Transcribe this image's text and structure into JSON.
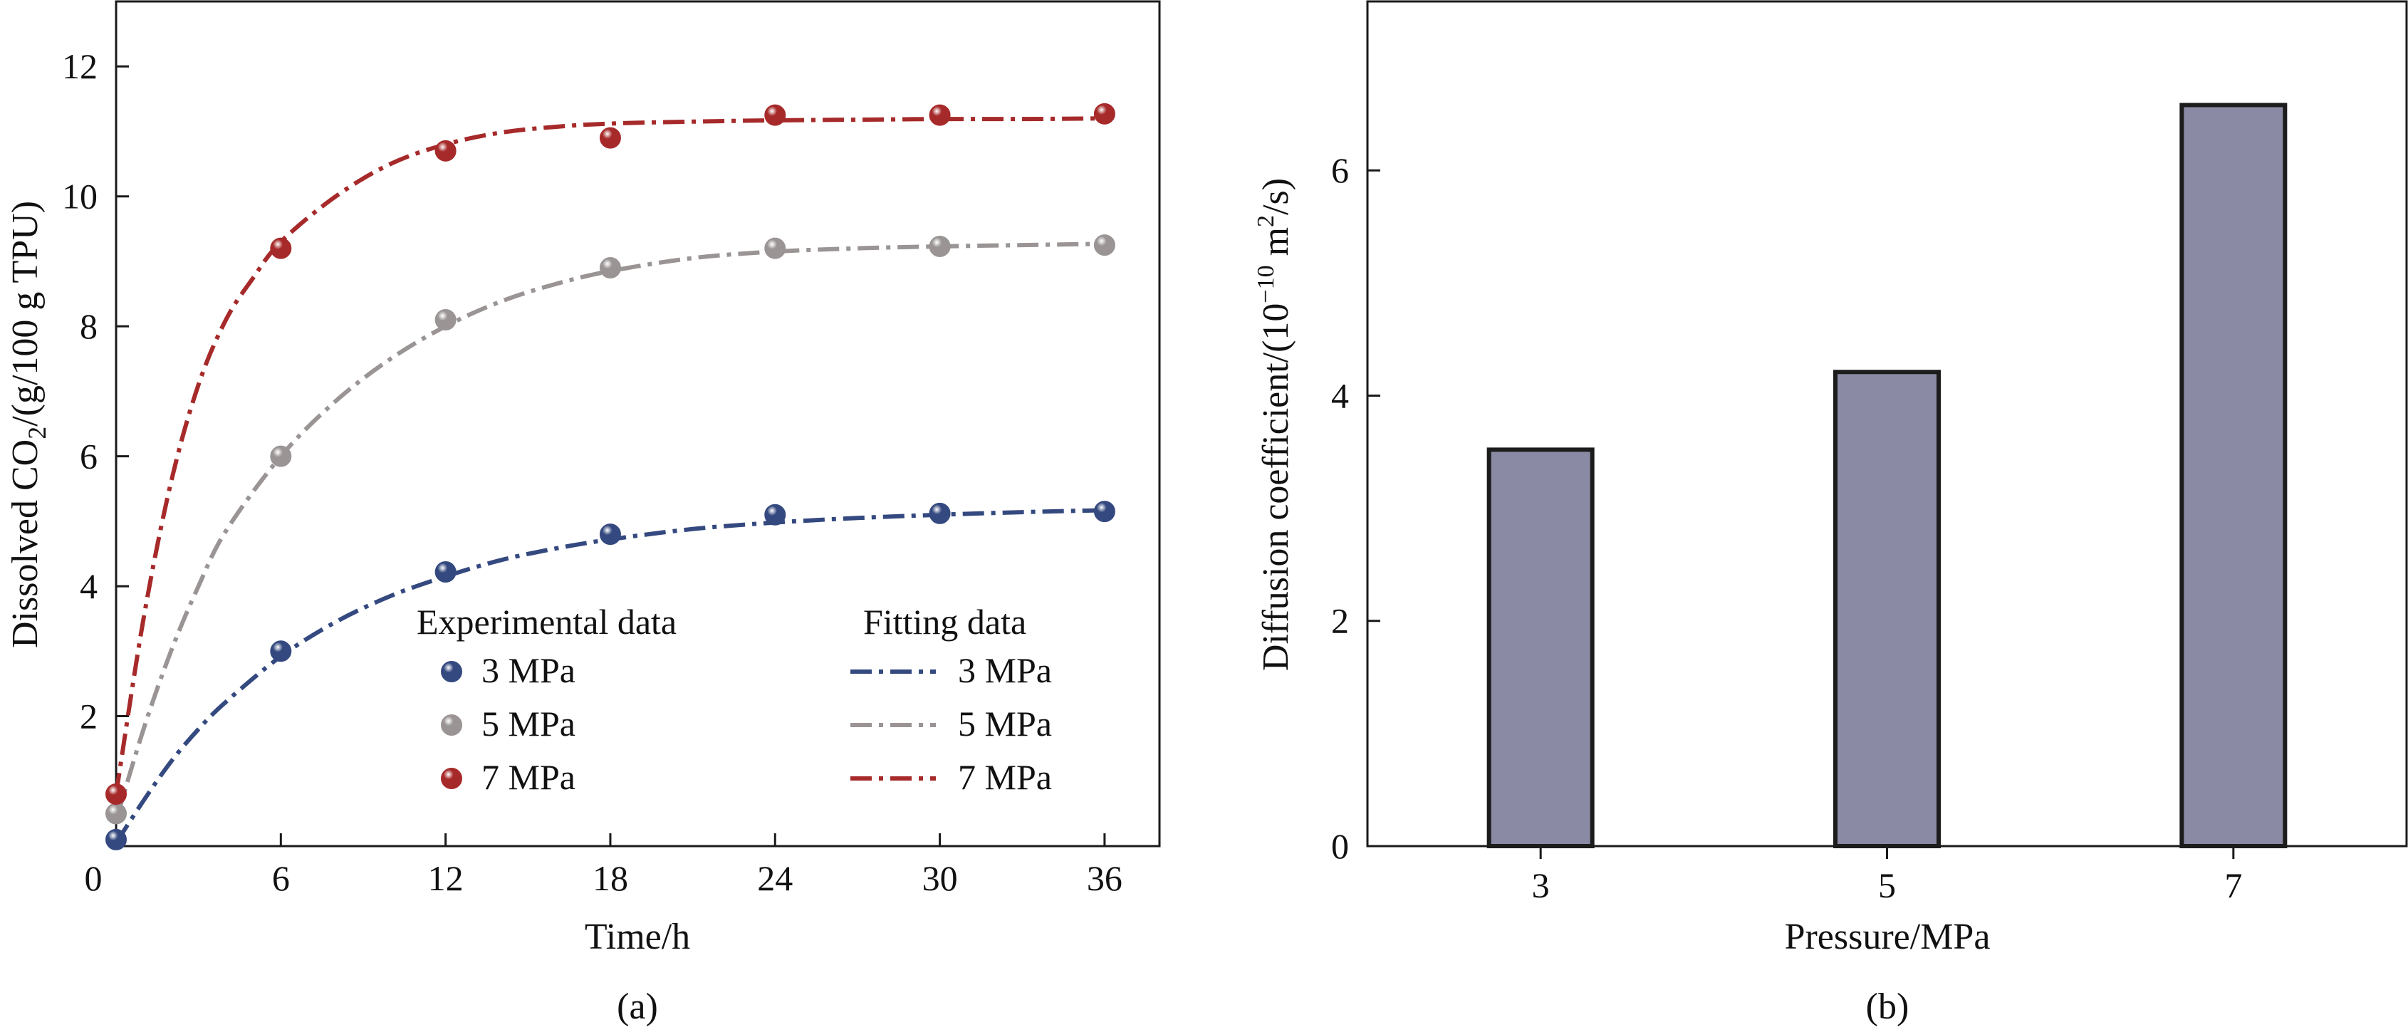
{
  "colors": {
    "p3": "#34497f",
    "p5": "#9a9494",
    "p7": "#a72a2a",
    "bar_fill": "#8a8aa4",
    "bar_stroke": "#1c1c1c"
  },
  "chart_data": [
    {
      "id": "a",
      "type": "line",
      "panel_label": "(a)",
      "xlabel": "Time/h",
      "ylabel": "Dissolved CO2/(g/100 g TPU)",
      "ylabel_parts": {
        "main": "Dissolved CO",
        "sub": "2",
        "rest": "/(g/100 g TPU)"
      },
      "xlim": [
        0,
        38
      ],
      "ylim": [
        0,
        13
      ],
      "xticks": [
        0,
        6,
        12,
        18,
        24,
        30,
        36
      ],
      "xtick_labels": [
        "0",
        "6",
        "12",
        "18",
        "24",
        "30",
        "36"
      ],
      "yticks": [
        2,
        4,
        6,
        8,
        10,
        12
      ],
      "ytick_labels": [
        "2",
        "4",
        "6",
        "8",
        "10",
        "12"
      ],
      "legend": {
        "experimental_title": "Experimental data",
        "fitting_title": "Fitting data",
        "entries": [
          "3 MPa",
          "5 MPa",
          "7 MPa"
        ]
      },
      "series": [
        {
          "name": "3 MPa",
          "color_key": "p3",
          "x": [
            0,
            6,
            12,
            18,
            24,
            30,
            36
          ],
          "experimental": [
            0.1,
            3.0,
            4.22,
            4.8,
            5.1,
            5.12,
            5.15
          ],
          "fit_x": [
            0,
            1,
            2,
            3,
            4,
            6,
            8,
            10,
            12,
            14,
            16,
            18,
            21,
            24,
            27,
            30,
            33,
            36
          ],
          "fit": [
            0.05,
            0.7,
            1.3,
            1.8,
            2.22,
            2.92,
            3.45,
            3.85,
            4.15,
            4.4,
            4.58,
            4.72,
            4.88,
            4.98,
            5.05,
            5.1,
            5.14,
            5.17
          ]
        },
        {
          "name": "5 MPa",
          "color_key": "p5",
          "x": [
            0,
            6,
            12,
            18,
            24,
            30,
            36
          ],
          "experimental": [
            0.5,
            6.0,
            8.1,
            8.9,
            9.2,
            9.23,
            9.25
          ],
          "fit_x": [
            0,
            1,
            2,
            3,
            4,
            6,
            8,
            10,
            12,
            14,
            16,
            18,
            21,
            24,
            27,
            30,
            33,
            36
          ],
          "fit": [
            0.4,
            1.8,
            3.0,
            4.0,
            4.85,
            6.0,
            6.85,
            7.5,
            8.0,
            8.38,
            8.65,
            8.85,
            9.05,
            9.15,
            9.2,
            9.23,
            9.25,
            9.27
          ]
        },
        {
          "name": "7 MPa",
          "color_key": "p7",
          "x": [
            0,
            6,
            12,
            18,
            24,
            30,
            36
          ],
          "experimental": [
            0.8,
            9.2,
            10.7,
            10.9,
            11.25,
            11.25,
            11.27
          ],
          "fit_x": [
            0,
            1,
            2,
            3,
            4,
            5,
            6,
            8,
            10,
            12,
            14,
            16,
            18,
            21,
            24,
            27,
            30,
            33,
            36
          ],
          "fit": [
            0.8,
            3.5,
            5.6,
            7.1,
            8.1,
            8.75,
            9.3,
            10.0,
            10.5,
            10.8,
            10.98,
            11.07,
            11.12,
            11.15,
            11.17,
            11.18,
            11.19,
            11.19,
            11.2
          ]
        }
      ]
    },
    {
      "id": "b",
      "type": "bar",
      "panel_label": "(b)",
      "xlabel": "Pressure/MPa",
      "ylabel": "Diffusion coefficient/(10^-10 m^2/s)",
      "ylabel_parts": {
        "main": "Diffusion coefficient/(10",
        "sup1": "−10",
        "mid": " m",
        "sup2": "2",
        "rest": "/s)"
      },
      "categories": [
        "3",
        "5",
        "7"
      ],
      "values": [
        3.52,
        4.21,
        6.58
      ],
      "ylim": [
        0,
        7.5
      ],
      "yticks": [
        0,
        2,
        4,
        6
      ],
      "ytick_labels": [
        "0",
        "2",
        "4",
        "6"
      ]
    }
  ]
}
